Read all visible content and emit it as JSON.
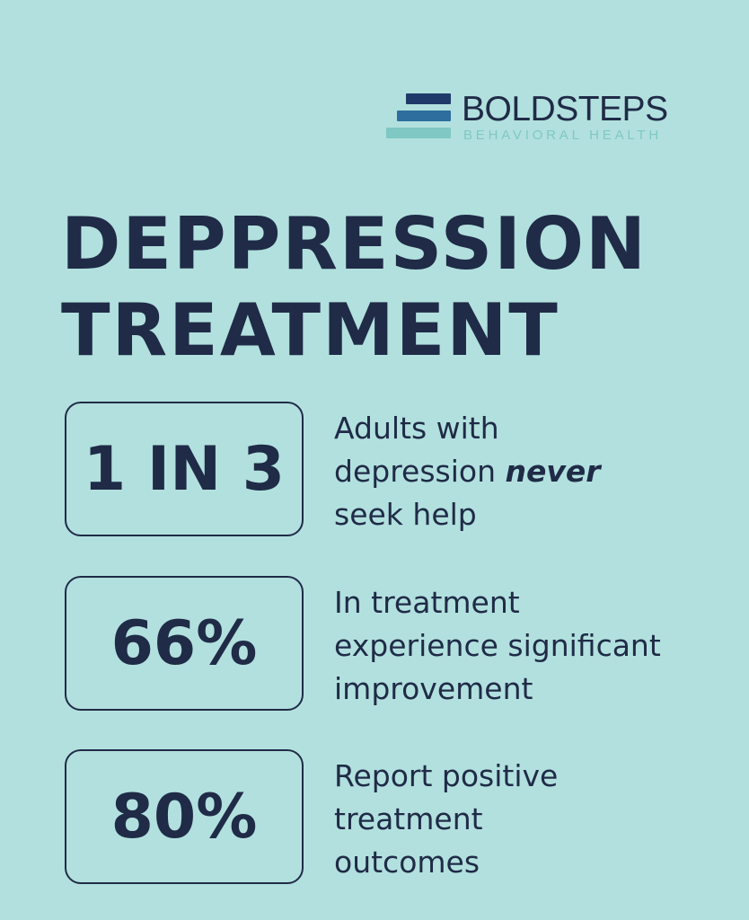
{
  "logo": {
    "name": "BOLDSTEPS",
    "subtitle": "BEHAVIORAL HEALTH",
    "colors": [
      "#1f3a68",
      "#2e6e9e",
      "#7fc8c4"
    ]
  },
  "title": {
    "line1": "DEPPRESSION",
    "line2": "TREATMENT"
  },
  "stats": [
    {
      "value": "1 IN 3",
      "line1": "Adults with",
      "line2_before": "depression ",
      "line2_emphasis": "never",
      "line3": "seek help"
    },
    {
      "value": "66%",
      "line1": "In treatment",
      "line2": "experience significant",
      "line3": "improvement"
    },
    {
      "value": "80%",
      "line1": "Report positive",
      "line2": "treatment",
      "line3": "outcomes"
    }
  ],
  "colors": {
    "background": "#b2e0de",
    "text": "#1f2b47"
  }
}
